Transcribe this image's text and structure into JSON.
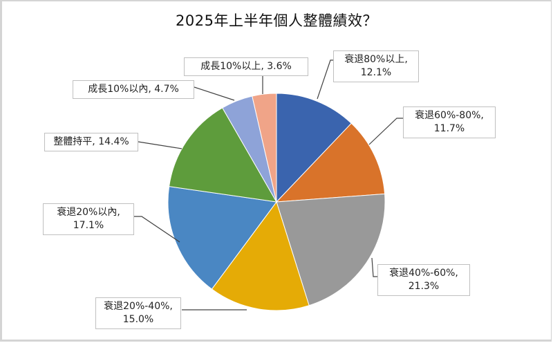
{
  "chart_data": {
    "type": "pie",
    "title": "2025年上半年個人整體績效？",
    "categories": [
      "衰退80%以上",
      "衰退60%-80%",
      "衰退40%-60%",
      "衰退20%-40%",
      "衰退20%以內",
      "整體持平",
      "成長10%以內",
      "成長10%以上"
    ],
    "values": [
      12.1,
      11.7,
      21.3,
      15.0,
      17.1,
      14.4,
      4.7,
      3.6
    ],
    "unit": "%",
    "colors": [
      "#3a64ae",
      "#d9732a",
      "#999999",
      "#e5ab06",
      "#4a87c3",
      "#5e9c3c",
      "#8ea3d8",
      "#f0a488"
    ],
    "start_angle": "12 o'clock, clockwise",
    "legend": "none (data labels with leader lines)"
  },
  "labels": [
    {
      "line1": "衰退80%以上,",
      "line2": "12.1%"
    },
    {
      "line1": "衰退60%-80%,",
      "line2": "11.7%"
    },
    {
      "line1": "衰退40%-60%,",
      "line2": "21.3%"
    },
    {
      "line1": "衰退20%-40%,",
      "line2": "15.0%"
    },
    {
      "line1": "衰退20%以內,",
      "line2": "17.1%"
    },
    {
      "line1": "整體持平, 14.4%"
    },
    {
      "line1": "成長10%以內, 4.7%"
    },
    {
      "line1": "成長10%以上, 3.6%"
    }
  ]
}
